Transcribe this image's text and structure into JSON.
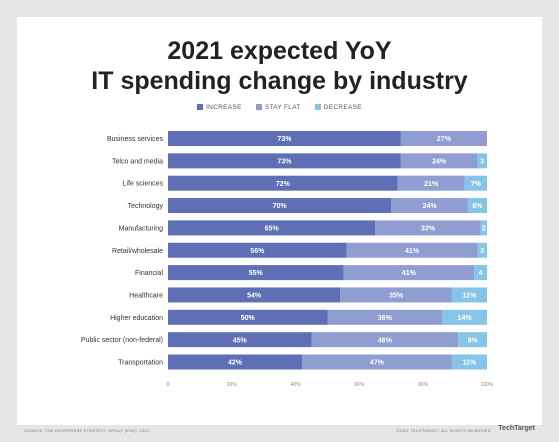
{
  "chart_data": {
    "type": "bar",
    "orientation": "horizontal",
    "stacked": true,
    "title_line1": "2021 expected YoY",
    "title_line2": "IT spending change by industry",
    "xlim": [
      0,
      100
    ],
    "x_ticks": [
      "0",
      "20%",
      "40%",
      "60%",
      "80%",
      "100%"
    ],
    "categories": [
      "Business services",
      "Telco and media",
      "Life sciences",
      "Technology",
      "Manufacturing",
      "Retail/wholesale",
      "Financial",
      "Healthcare",
      "Higher education",
      "Public sector (non-federal)",
      "Transportation"
    ],
    "series": [
      {
        "name": "INCREASE",
        "color": "#5f6fb5",
        "values": [
          73,
          73,
          72,
          70,
          65,
          56,
          55,
          54,
          50,
          45,
          42
        ]
      },
      {
        "name": "STAY FLAT",
        "color": "#8f9dd0",
        "values": [
          27,
          24,
          21,
          24,
          33,
          41,
          41,
          35,
          36,
          46,
          47
        ]
      },
      {
        "name": "DECREASE",
        "color": "#86c5e8",
        "values": [
          0,
          3,
          7,
          6,
          2,
          3,
          4,
          11,
          14,
          9,
          11
        ]
      }
    ],
    "data_labels": [
      [
        "73%",
        "27%",
        ""
      ],
      [
        "73%",
        "24%",
        "3"
      ],
      [
        "72%",
        "21%",
        "7%"
      ],
      [
        "70%",
        "24%",
        "6%"
      ],
      [
        "65%",
        "33%",
        "2"
      ],
      [
        "56%",
        "41%",
        "3"
      ],
      [
        "55%",
        "41%",
        "4"
      ],
      [
        "54%",
        "35%",
        "11%"
      ],
      [
        "50%",
        "36%",
        "14%"
      ],
      [
        "45%",
        "46%",
        "9%"
      ],
      [
        "42%",
        "47%",
        "11%"
      ]
    ],
    "legend_position": "top",
    "grid": false
  },
  "footer": {
    "left": "SOURCE: THE ENTERPRISE STRATEGY GROUP (ESG), 2020",
    "right": "©2021 TECHTARGET. ALL RIGHTS RESERVED",
    "brand": "TechTarget"
  }
}
